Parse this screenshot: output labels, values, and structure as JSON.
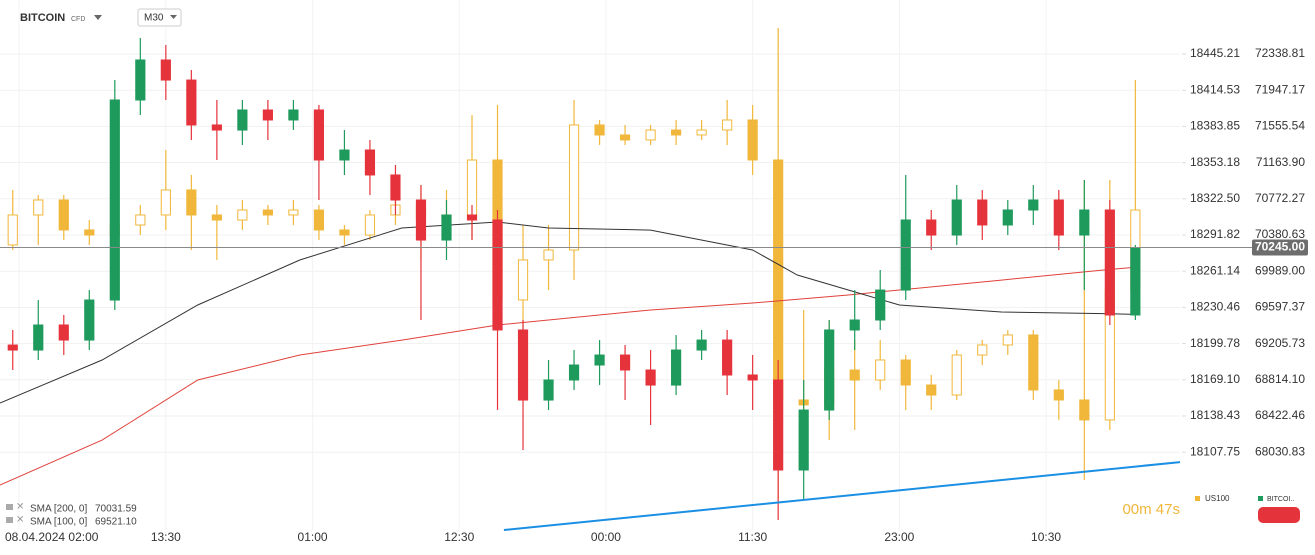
{
  "toolbar": {
    "symbol": "BITCOIN",
    "symbol_type": "CFD",
    "timeframe": "M30"
  },
  "chart_data": {
    "type": "candlestick",
    "x": [
      2,
      6,
      10,
      14,
      18,
      22,
      26,
      30,
      34,
      38,
      42,
      46,
      50,
      54,
      58,
      62,
      66,
      70,
      74,
      78,
      82,
      86,
      90,
      94,
      98,
      102,
      106,
      110,
      114,
      118,
      122,
      126,
      130,
      134,
      138,
      142,
      146,
      150,
      154,
      158,
      162,
      166,
      170,
      174,
      178
    ],
    "xlim": [
      0,
      185
    ],
    "xticks": [
      {
        "value": 3,
        "label": "08.04.2024  02:00"
      },
      {
        "value": 26,
        "label": "13:30"
      },
      {
        "value": 49,
        "label": "01:00"
      },
      {
        "value": 72,
        "label": "12:30"
      },
      {
        "value": 95,
        "label": "00:00"
      },
      {
        "value": 118,
        "label": "11:30"
      },
      {
        "value": 141,
        "label": "23:00"
      },
      {
        "value": 164,
        "label": "10:30"
      }
    ],
    "ylim": [
      67189,
      72923
    ],
    "yticks": [
      72338.81,
      71947.17,
      71555.54,
      {
        "value": 71163.9,
        "label": "71163.90"
      },
      70772.27,
      70380.63,
      {
        "value": 69989,
        "label": "69989.00"
      },
      69597.37,
      69205.73,
      {
        "value": 68814.1,
        "label": "68814.10"
      },
      68422.46,
      68030.83
    ],
    "y2lim": [
      18041.8,
      18491
    ],
    "y2ticks": [
      18445.21,
      18414.53,
      18383.85,
      18353.18,
      {
        "value": 18322.5,
        "label": "18322.50"
      },
      18291.82,
      18261.14,
      18230.46,
      18199.78,
      {
        "value": 18169.1,
        "label": "18169.10"
      },
      18138.43,
      18107.75
    ],
    "grid": true,
    "series": [
      {
        "name": "US100",
        "color": "#f0b73a",
        "hollow_up": true,
        "axis": "y2",
        "open": [
          18283.4,
          18308.8,
          18321.5,
          18296.1,
          18291.8,
          18300.3,
          18308.8,
          18330.0,
          18308.8,
          18304.5,
          18313.0,
          18308.8,
          18313.0,
          18296.1,
          18291.8,
          18308.8,
          18317.3,
          18304.5,
          18308.8,
          18355.4,
          18236.8,
          18270.7,
          18279.1,
          18385.1,
          18376.6,
          18372.4,
          18380.8,
          18376.6,
          18380.8,
          18389.3,
          18355.4,
          18152.0,
          18147.8,
          18177.4,
          18168.9,
          18185.9,
          18164.7,
          18156.2,
          18190.1,
          18198.6,
          18207.1,
          18160.5,
          18152.0,
          18135.1,
          18245.2
        ],
        "high": [
          18330.0,
          18325.7,
          18325.7,
          18304.5,
          18308.8,
          18317.3,
          18363.9,
          18342.7,
          18317.3,
          18321.5,
          18317.3,
          18321.5,
          18317.3,
          18300.3,
          18313.0,
          18325.7,
          18334.2,
          18330.0,
          18393.5,
          18402.0,
          18300.3,
          18300.3,
          18406.3,
          18389.3,
          18385.1,
          18385.1,
          18389.3,
          18389.3,
          18406.3,
          18402.0,
          18467.3,
          18228.3,
          18219.8,
          18202.9,
          18202.9,
          18190.1,
          18173.2,
          18194.4,
          18202.9,
          18211.3,
          18211.3,
          18168.9,
          18338.4,
          18338.4,
          18423.2
        ],
        "low": [
          18279.1,
          18283.4,
          18287.6,
          18283.4,
          18287.6,
          18291.8,
          18296.1,
          18279.1,
          18270.7,
          18296.1,
          18300.3,
          18300.3,
          18287.6,
          18283.4,
          18287.6,
          18300.3,
          18270.7,
          18287.6,
          18287.6,
          18211.3,
          18194.4,
          18245.2,
          18253.7,
          18368.1,
          18368.1,
          18368.1,
          18368.1,
          18372.4,
          18368.1,
          18342.7,
          18067.3,
          18118.1,
          18118.1,
          18126.6,
          18160.5,
          18143.5,
          18143.5,
          18152.0,
          18181.7,
          18190.1,
          18152.0,
          18135.1,
          18084.2,
          18126.6,
          18236.8
        ],
        "close": [
          18308.8,
          18321.5,
          18296.1,
          18291.8,
          18300.3,
          18308.8,
          18330.0,
          18308.8,
          18304.5,
          18313.0,
          18308.8,
          18313.0,
          18296.1,
          18291.8,
          18308.8,
          18317.3,
          18304.5,
          18308.8,
          18355.4,
          18236.8,
          18270.7,
          18279.1,
          18385.1,
          18376.6,
          18372.4,
          18380.8,
          18376.6,
          18380.8,
          18389.3,
          18355.4,
          18152.0,
          18147.8,
          18177.4,
          18168.9,
          18185.9,
          18164.7,
          18156.2,
          18190.1,
          18198.6,
          18207.1,
          18160.5,
          18152.0,
          18135.1,
          18245.2,
          18313.0
        ]
      },
      {
        "name": "BITCOI..",
        "color": "#1e9a5c",
        "down_color": "#e5333c",
        "open": [
          69190,
          69136,
          69407,
          69244,
          69677,
          71841,
          72274,
          72057,
          71571,
          71516,
          71733,
          71625,
          71733,
          71192,
          71300,
          71030,
          70759,
          70326,
          70597,
          70543,
          69353,
          68595,
          68812,
          68974,
          69082,
          68920,
          68757,
          69136,
          69244,
          68866,
          68812,
          67838,
          68487,
          69353,
          69461,
          69785,
          70543,
          70380,
          70759,
          70489,
          70651,
          70759,
          70380,
          70651,
          69515
        ],
        "high": [
          69353,
          69677,
          69515,
          69785,
          72057,
          72512,
          72436,
          72166,
          71841,
          71841,
          71841,
          71841,
          71787,
          71516,
          71408,
          71138,
          70921,
          70759,
          70705,
          70651,
          69461,
          69028,
          69136,
          69244,
          69190,
          69136,
          69298,
          69353,
          69353,
          69082,
          69028,
          68812,
          69461,
          69785,
          70002,
          71030,
          70651,
          70921,
          70867,
          70759,
          70921,
          70867,
          70975,
          70759,
          70272
        ],
        "low": [
          68920,
          69028,
          69082,
          69136,
          69569,
          71679,
          71841,
          71408,
          71192,
          71354,
          71408,
          71516,
          70759,
          71030,
          70813,
          70597,
          69461,
          70110,
          70326,
          68487,
          68054,
          68487,
          68703,
          68757,
          68595,
          68325,
          68649,
          69028,
          68649,
          68487,
          67297,
          67513,
          68379,
          69136,
          69353,
          69677,
          70218,
          70272,
          70326,
          70380,
          70489,
          70218,
          69785,
          69407,
          69461
        ],
        "close": [
          69136,
          69407,
          69244,
          69677,
          71841,
          72274,
          72057,
          71571,
          71516,
          71733,
          71625,
          71733,
          71192,
          71300,
          71030,
          70759,
          70326,
          70597,
          70543,
          69353,
          68595,
          68812,
          68974,
          69082,
          68920,
          68757,
          69136,
          69244,
          68866,
          68812,
          67838,
          68487,
          69353,
          69461,
          69785,
          70543,
          70380,
          70759,
          70489,
          70651,
          70759,
          70380,
          70651,
          69515,
          70245
        ]
      }
    ],
    "indicators": [
      {
        "name": "SMA [200,  0]",
        "value": 70031.59,
        "color": "#e0413a",
        "x": [
          0,
          16,
          31,
          47,
          63,
          78,
          102,
          118,
          133,
          141,
          157,
          173,
          178
        ],
        "values": [
          67676,
          68162,
          68812,
          69082,
          69244,
          69407,
          69569,
          69645,
          69731,
          69785,
          69893,
          70002,
          70031.59
        ]
      },
      {
        "name": "SMA [100,  0]",
        "value": 69521.1,
        "value_label": "69521.10",
        "color": "#333333",
        "x": [
          0,
          16,
          31,
          47,
          63,
          78,
          86,
          102,
          118,
          125,
          133,
          141,
          157,
          173,
          178
        ],
        "values": [
          68562,
          69028,
          69623,
          70110,
          70456,
          70521,
          70456,
          70434,
          70218,
          69948,
          69785,
          69623,
          69547,
          69530,
          69521.1
        ]
      }
    ],
    "trendline": {
      "color": "#1a8fe3",
      "x": [
        79,
        185
      ],
      "values": [
        67189,
        67924
      ]
    },
    "last_price": {
      "value": 70245,
      "label": "70245.00"
    },
    "timer": "00m 47s"
  }
}
